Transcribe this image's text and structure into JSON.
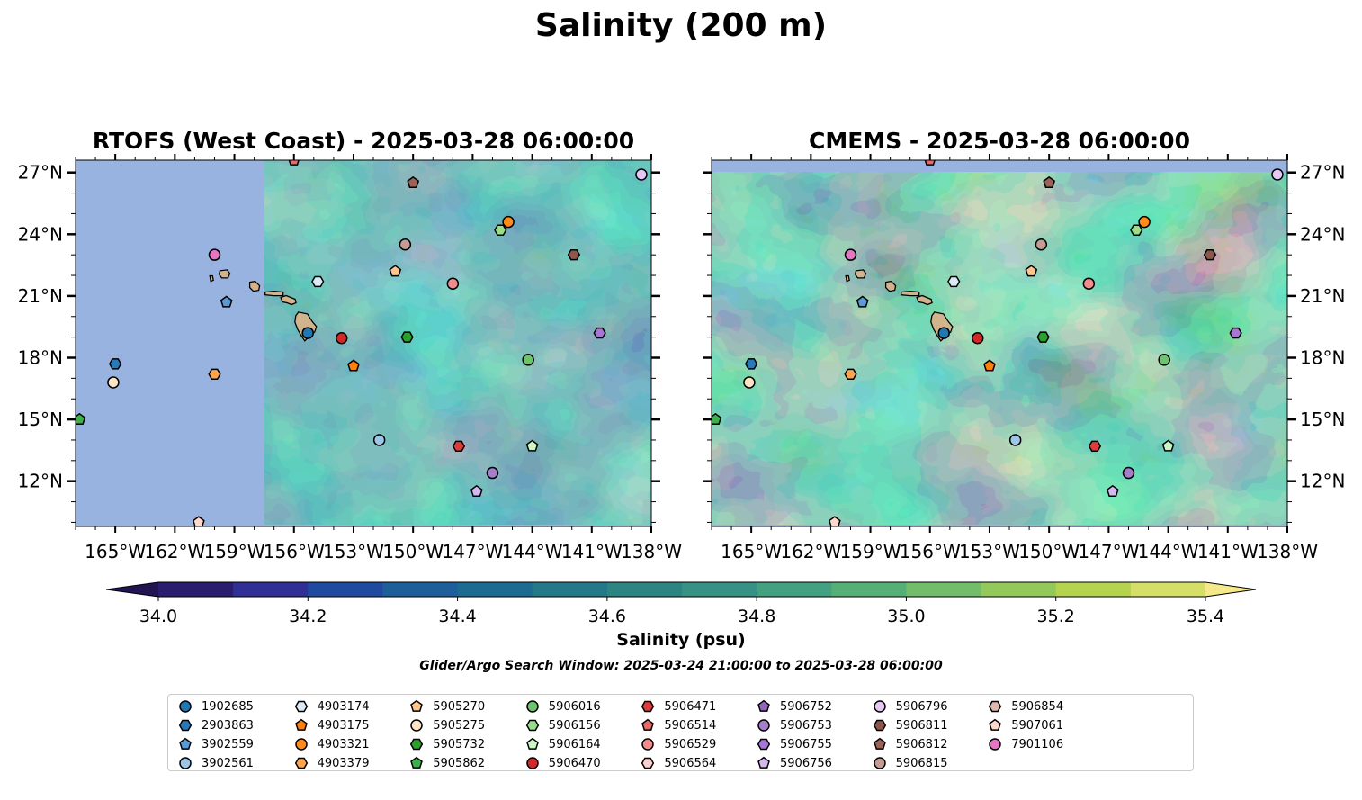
{
  "title": "Salinity (200 m)",
  "panels": [
    {
      "key": "rtofs",
      "title": "RTOFS (West Coast) - 2025-03-28 06:00:00",
      "mask_lon": -157.5,
      "top_strip": false
    },
    {
      "key": "cmems",
      "title": "CMEMS - 2025-03-28 06:00:00",
      "mask_lon": null,
      "top_strip": true
    }
  ],
  "map_extent": {
    "lon": [
      -167,
      -138
    ],
    "lat": [
      9.8,
      27.6
    ]
  },
  "lon_ticks": [
    {
      "value": -165,
      "label": "165°W"
    },
    {
      "value": -162,
      "label": "162°W"
    },
    {
      "value": -159,
      "label": "159°W"
    },
    {
      "value": -156,
      "label": "156°W"
    },
    {
      "value": -153,
      "label": "153°W"
    },
    {
      "value": -150,
      "label": "150°W"
    },
    {
      "value": -147,
      "label": "147°W"
    },
    {
      "value": -144,
      "label": "144°W"
    },
    {
      "value": -141,
      "label": "141°W"
    },
    {
      "value": -138,
      "label": "138°W"
    }
  ],
  "lat_ticks": [
    {
      "value": 12,
      "label": "12°N"
    },
    {
      "value": 15,
      "label": "15°N"
    },
    {
      "value": 18,
      "label": "18°N"
    },
    {
      "value": 21,
      "label": "21°N"
    },
    {
      "value": 24,
      "label": "24°N"
    },
    {
      "value": 27,
      "label": "27°N"
    }
  ],
  "colorbar": {
    "label": "Salinity (psu)",
    "min": 34.0,
    "max": 35.4,
    "step": 0.1,
    "ticks": [
      "34.0",
      "34.2",
      "34.4",
      "34.6",
      "34.8",
      "35.0",
      "35.2",
      "35.4"
    ],
    "colors": [
      "#2a1d6e",
      "#2f2f96",
      "#1f4aa0",
      "#1d5e9b",
      "#1b6b93",
      "#237989",
      "#2d8583",
      "#359285",
      "#42a180",
      "#55b077",
      "#71bd69",
      "#93c85a",
      "#b5d34f",
      "#d5de67"
    ],
    "under_color": "#221452",
    "over_color": "#f6e98c"
  },
  "search_window": "Glider/Argo Search Window: 2025-03-24 21:00:00 to 2025-03-28 06:00:00",
  "land_color": "#d2b48c",
  "masked_color": "#98b3e0",
  "islands": [
    {
      "name": "Hawaii",
      "lon": -155.5,
      "lat": 19.6
    },
    {
      "name": "Maui",
      "lon": -156.3,
      "lat": 20.8
    },
    {
      "name": "Molokai",
      "lon": -157.0,
      "lat": 21.1
    },
    {
      "name": "Oahu",
      "lon": -158.0,
      "lat": 21.45
    },
    {
      "name": "Kauai",
      "lon": -159.5,
      "lat": 22.05
    },
    {
      "name": "Niihau",
      "lon": -160.15,
      "lat": 21.85
    }
  ],
  "floats": [
    {
      "id": "1902685",
      "marker": "circle",
      "color": "#1f77b4",
      "lon": -155.3,
      "lat": 19.2
    },
    {
      "id": "2903863",
      "marker": "hexagon",
      "color": "#2a78b5",
      "lon": -165.0,
      "lat": 17.7
    },
    {
      "id": "3902559",
      "marker": "pentagon",
      "color": "#5b9bd5",
      "lon": -159.4,
      "lat": 20.7
    },
    {
      "id": "3902561",
      "marker": "circle",
      "color": "#9dc6e8",
      "lon": -151.7,
      "lat": 14.0
    },
    {
      "id": "4903174",
      "marker": "hexagon",
      "color": "#dceaf7",
      "lon": -154.8,
      "lat": 21.7
    },
    {
      "id": "4903175",
      "marker": "pentagon",
      "color": "#ff7f0e",
      "lon": -153.0,
      "lat": 17.6
    },
    {
      "id": "4903321",
      "marker": "circle",
      "color": "#ff8c1a",
      "lon": -145.2,
      "lat": 24.6
    },
    {
      "id": "4903379",
      "marker": "hexagon",
      "color": "#ffa54f",
      "lon": -160.0,
      "lat": 17.2
    },
    {
      "id": "5905270",
      "marker": "pentagon",
      "color": "#ffc58f",
      "lon": -150.9,
      "lat": 22.2
    },
    {
      "id": "5905275",
      "marker": "circle",
      "color": "#ffe4c4",
      "lon": -165.1,
      "lat": 16.8
    },
    {
      "id": "5905732",
      "marker": "hexagon",
      "color": "#2ca02c",
      "lon": -150.3,
      "lat": 19.0
    },
    {
      "id": "5905862",
      "marker": "pentagon",
      "color": "#3cb04a",
      "lon": -166.8,
      "lat": 15.0
    },
    {
      "id": "5906016",
      "marker": "circle",
      "color": "#6cc46c",
      "lon": -144.2,
      "lat": 17.9
    },
    {
      "id": "5906156",
      "marker": "hexagon",
      "color": "#98df8a",
      "lon": -145.6,
      "lat": 24.2
    },
    {
      "id": "5906164",
      "marker": "pentagon",
      "color": "#ccf5c4",
      "lon": -144.0,
      "lat": 13.7
    },
    {
      "id": "5906470",
      "marker": "circle",
      "color": "#d62728",
      "lon": -153.6,
      "lat": 18.95
    },
    {
      "id": "5906471",
      "marker": "hexagon",
      "color": "#e03b3b",
      "lon": -147.7,
      "lat": 13.7
    },
    {
      "id": "5906514",
      "marker": "pentagon",
      "color": "#e86a6a",
      "lon": -156.0,
      "lat": 27.6
    },
    {
      "id": "5906529",
      "marker": "circle",
      "color": "#f08c8c",
      "lon": -148.0,
      "lat": 21.6
    },
    {
      "id": "5906564",
      "marker": "hexagon",
      "color": "#fcd0d0",
      "lon": -155.0,
      "lat": 28.1
    },
    {
      "id": "5906752",
      "marker": "pentagon",
      "color": "#9467bd",
      "lon": -140.2,
      "lat": 28.1
    },
    {
      "id": "5906753",
      "marker": "circle",
      "color": "#a57fcc",
      "lon": -146.0,
      "lat": 12.4
    },
    {
      "id": "5906755",
      "marker": "hexagon",
      "color": "#a678d4",
      "lon": -140.6,
      "lat": 19.2
    },
    {
      "id": "5906756",
      "marker": "pentagon",
      "color": "#d5b8f0",
      "lon": -146.8,
      "lat": 11.5
    },
    {
      "id": "5906796",
      "marker": "circle",
      "color": "#e6c6f5",
      "lon": -138.5,
      "lat": 26.9
    },
    {
      "id": "5906811",
      "marker": "hexagon",
      "color": "#8c564b",
      "lon": -141.9,
      "lat": 23.0
    },
    {
      "id": "5906812",
      "marker": "pentagon",
      "color": "#9a6358",
      "lon": -150.0,
      "lat": 26.5
    },
    {
      "id": "5906815",
      "marker": "circle",
      "color": "#c49c94",
      "lon": -150.4,
      "lat": 23.5
    },
    {
      "id": "5906854",
      "marker": "hexagon",
      "color": "#e0b8ae",
      "lon": -153.7,
      "lat": 28.3
    },
    {
      "id": "5907061",
      "marker": "pentagon",
      "color": "#ffd9cc",
      "lon": -160.8,
      "lat": 10.0
    },
    {
      "id": "7901106",
      "marker": "circle",
      "color": "#e377c2",
      "lon": -160.0,
      "lat": 23.0
    }
  ]
}
